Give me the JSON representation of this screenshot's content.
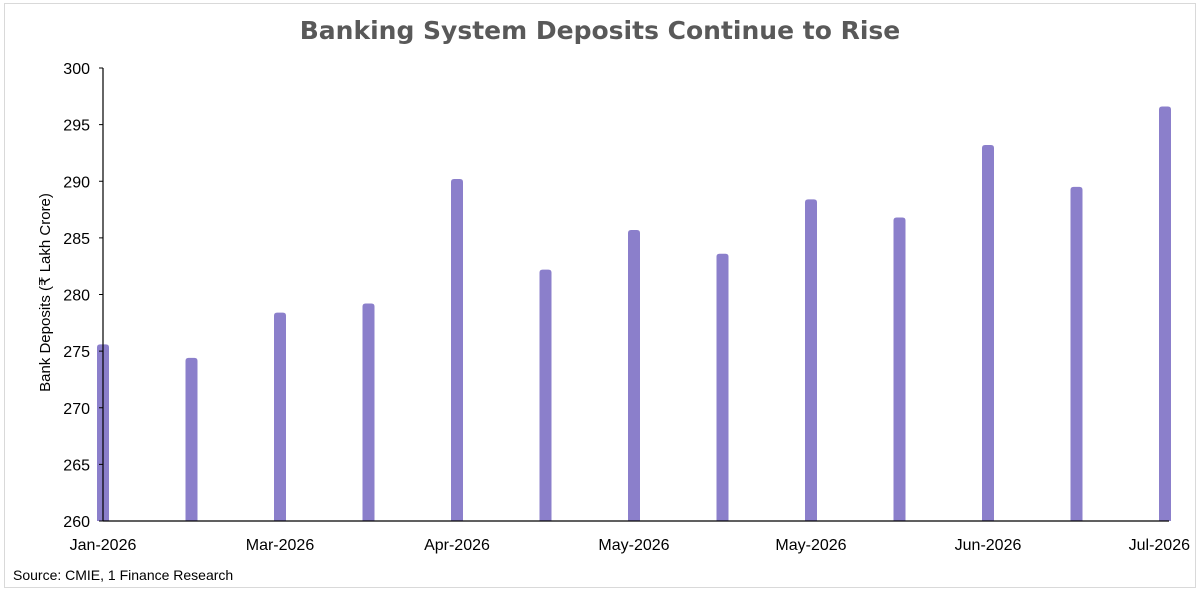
{
  "chart_data": {
    "type": "bar",
    "title": "Banking System Deposits Continue to Rise",
    "xlabel": "",
    "ylabel": "Bank Deposits (₹ Lakh Crore)",
    "ylim": [
      260,
      300
    ],
    "yticks": [
      260,
      265,
      270,
      275,
      280,
      285,
      290,
      295,
      300
    ],
    "categories": [
      "Jan-2026",
      "",
      "Mar-2026",
      "",
      "Apr-2026",
      "",
      "May-2026",
      "",
      "May-2026",
      "",
      "Jun-2026",
      "",
      "Jul-2026"
    ],
    "values": [
      275.6,
      274.4,
      278.4,
      279.2,
      290.2,
      282.2,
      285.7,
      283.6,
      288.4,
      286.8,
      293.2,
      289.5,
      296.6
    ],
    "bar_color": "#8b7fcb",
    "grid": false,
    "legend": "none"
  },
  "footer": {
    "source": "Source: CMIE, 1 Finance Research"
  }
}
